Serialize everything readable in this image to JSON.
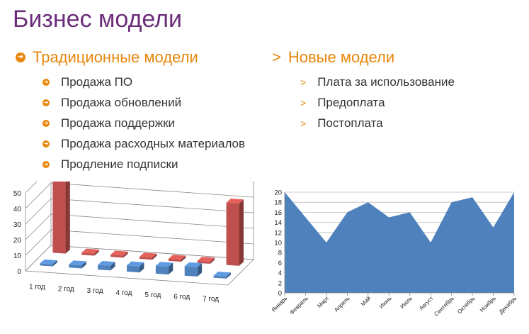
{
  "slide": {
    "title": "Бизнес модели",
    "traditional": {
      "heading": "Традиционные модели",
      "items": [
        "Продажа ПО",
        "Продажа обновлений",
        "Продажа поддержки",
        "Продажа расходных материалов",
        "Продление подписки"
      ]
    },
    "new_models": {
      "heading": "Новые модели",
      "items": [
        "Плата за использование",
        "Предоплата",
        "Постоплата"
      ]
    }
  },
  "chart_data": [
    {
      "type": "bar",
      "categories": [
        "1 год",
        "2 год",
        "3 год",
        "4 год",
        "5 год",
        "6 год",
        "7 год"
      ],
      "series": [
        {
          "values": [
            50,
            0,
            0,
            0,
            0,
            0,
            40
          ],
          "color": "#c0504d"
        },
        {
          "values": [
            0,
            2,
            3,
            4,
            5,
            6,
            1
          ],
          "color": "#4f81bd"
        }
      ],
      "ylim": [
        0,
        50
      ],
      "yticks": [
        0,
        10,
        20,
        30,
        40,
        50
      ]
    },
    {
      "type": "area",
      "categories": [
        "Январь",
        "Февраль",
        "Март",
        "Апрель",
        "Май",
        "Июнь",
        "Июль",
        "Август",
        "Сентябрь",
        "Октябрь",
        "Ноябрь",
        "Декабрь"
      ],
      "values": [
        20,
        15,
        10,
        16,
        18,
        15,
        16,
        10,
        18,
        19,
        13,
        20
      ],
      "color": "#4f81bd",
      "ylim": [
        0,
        20
      ],
      "yticks": [
        0,
        2,
        4,
        6,
        8,
        10,
        12,
        14,
        16,
        18,
        20
      ]
    }
  ]
}
